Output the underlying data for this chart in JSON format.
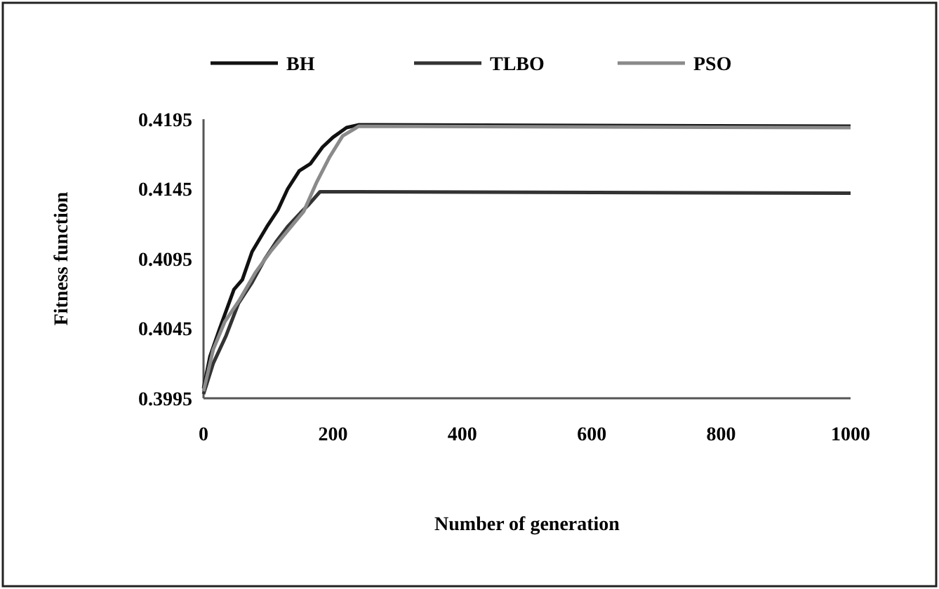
{
  "chart_data": {
    "type": "line",
    "xlabel": "Number of generation",
    "ylabel": "Fitness function",
    "xlim": [
      0,
      1000
    ],
    "xticks": [
      0,
      200,
      400,
      600,
      800,
      1000
    ],
    "ylim": [
      0.3995,
      0.4195
    ],
    "yticks": [
      0.3995,
      0.4045,
      0.4095,
      0.4145,
      0.4195
    ],
    "legend": "top",
    "grid": false,
    "marker": "none",
    "line_style": "solid",
    "series": [
      {
        "name": "BH",
        "color": "#111111",
        "x": [
          0,
          10,
          25,
          47,
          60,
          75,
          98,
          115,
          130,
          148,
          165,
          184,
          200,
          221,
          240,
          264,
          1000
        ],
        "values": [
          0.4002,
          0.4025,
          0.4045,
          0.4073,
          0.408,
          0.41,
          0.4118,
          0.413,
          0.4145,
          0.4158,
          0.4163,
          0.4175,
          0.4182,
          0.4189,
          0.4191,
          0.4191,
          0.419
        ]
      },
      {
        "name": "TLBO",
        "color": "#333333",
        "x": [
          0,
          15,
          35,
          54,
          75,
          95,
          112,
          130,
          150,
          163,
          180,
          1000
        ],
        "values": [
          0.3998,
          0.402,
          0.404,
          0.4063,
          0.4078,
          0.4095,
          0.4107,
          0.4118,
          0.4128,
          0.4134,
          0.4143,
          0.4142
        ]
      },
      {
        "name": "PSO",
        "color": "#8a8a8a",
        "x": [
          0,
          15,
          33,
          55,
          80,
          105,
          130,
          155,
          175,
          195,
          215,
          240,
          1000
        ],
        "values": [
          0.4,
          0.403,
          0.405,
          0.4065,
          0.4085,
          0.4101,
          0.4115,
          0.4129,
          0.415,
          0.4168,
          0.4183,
          0.419,
          0.4189
        ]
      }
    ]
  }
}
